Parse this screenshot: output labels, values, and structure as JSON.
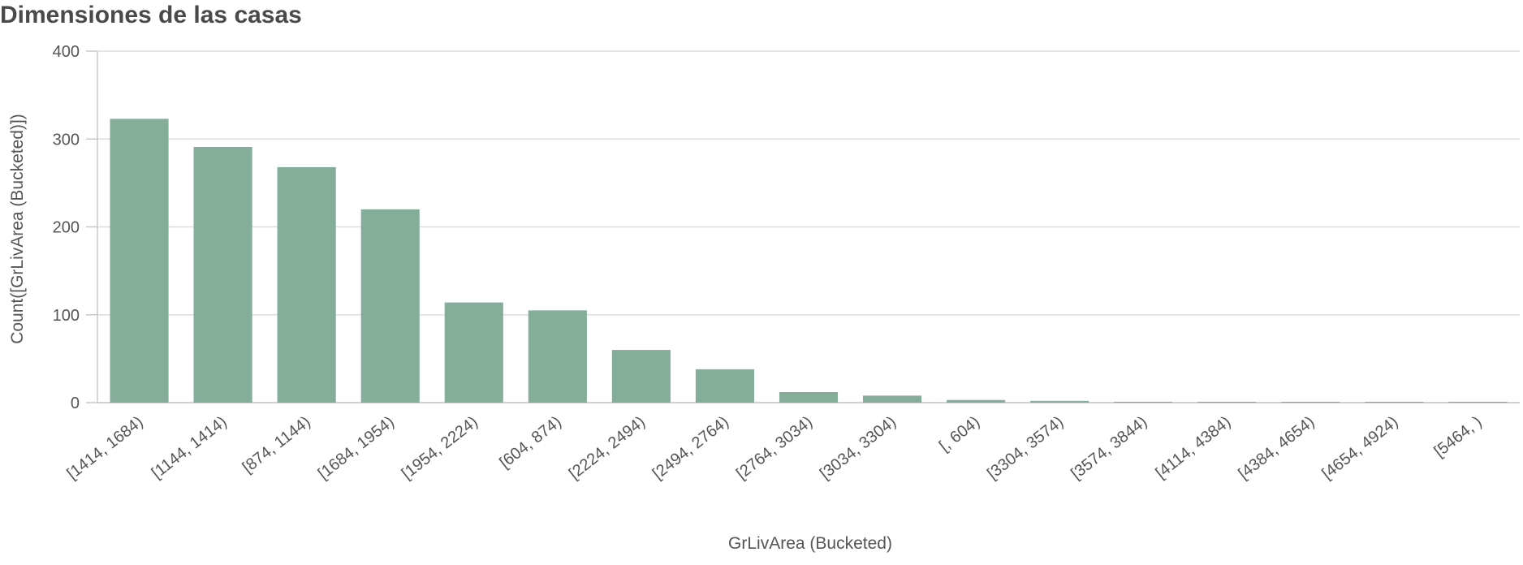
{
  "chart_data": {
    "type": "bar",
    "title": "Dimensiones de las casas",
    "xlabel": "GrLivArea (Bucketed)",
    "ylabel": "Count([GrLivArea (Bucketed)])",
    "categories": [
      "[1414, 1684)",
      "[1144, 1414)",
      "[874, 1144)",
      "[1684, 1954)",
      "[1954, 2224)",
      "[604, 874)",
      "[2224, 2494)",
      "[2494, 2764)",
      "[2764, 3034)",
      "[3034, 3304)",
      "[, 604)",
      "[3304, 3574)",
      "[3574, 3844)",
      "[4114, 4384)",
      "[4384, 4654)",
      "[4654, 4924)",
      "[5464, )"
    ],
    "values": [
      323,
      291,
      268,
      220,
      114,
      105,
      60,
      38,
      12,
      8,
      3,
      2,
      1,
      1,
      1,
      1,
      1
    ],
    "ylim": [
      0,
      400
    ],
    "yticks": [
      0,
      100,
      200,
      300,
      400
    ],
    "grid": true,
    "legend": "none",
    "colors": {
      "bar": "#84ae99",
      "grid": "#dddddd",
      "axis": "#c8c8c8",
      "text": "#555555",
      "title": "#4a4a4a"
    }
  }
}
